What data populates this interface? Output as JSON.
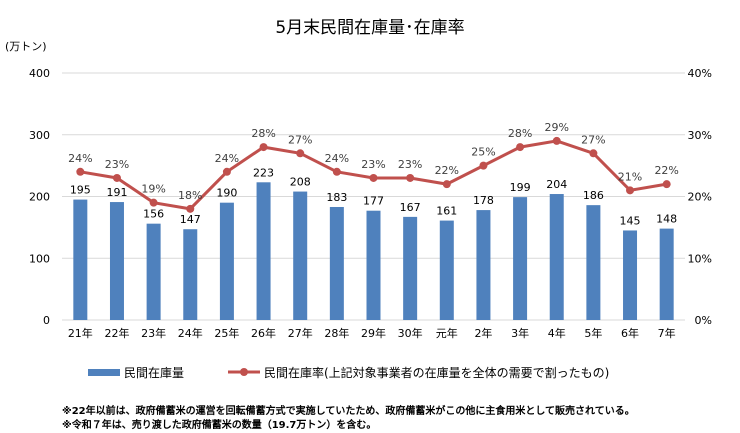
{
  "chart_data": {
    "type": "bar+line",
    "title": "5月末民間在庫量･在庫率",
    "ylabel": "(万トン)",
    "ylim": [
      0,
      400
    ],
    "y2lim": [
      0,
      40
    ],
    "yticks": [
      "0",
      "100",
      "200",
      "300",
      "400"
    ],
    "y2ticks": [
      "0%",
      "10%",
      "20%",
      "30%",
      "40%"
    ],
    "categories": [
      "21年",
      "22年",
      "23年",
      "24年",
      "25年",
      "26年",
      "27年",
      "28年",
      "29年",
      "30年",
      "元年",
      "2年",
      "3年",
      "4年",
      "5年",
      "6年",
      "7年"
    ],
    "series": [
      {
        "name": "民間在庫量",
        "type": "bar",
        "axis": "left",
        "color": "#4f81bd",
        "values": [
          195,
          191,
          156,
          147,
          190,
          223,
          208,
          183,
          177,
          167,
          161,
          178,
          199,
          204,
          186,
          145,
          148
        ]
      },
      {
        "name": "民間在庫率(上記対象事業者の在庫量を全体の需要で割ったもの)",
        "type": "line",
        "axis": "right",
        "color": "#c0504d",
        "values": [
          24,
          23,
          19,
          18,
          24,
          28,
          27,
          24,
          23,
          23,
          22,
          25,
          28,
          29,
          27,
          21,
          22
        ]
      }
    ],
    "grid": true,
    "legend_position": "bottom"
  },
  "notes": [
    "※22年以前は、政府備蓄米の運営を回転備蓄方式で実施していたため、政府備蓄米がこの他に主食用米として販売されている。",
    "※令和７年は、売り渡した政府備蓄米の数量（19.7万トン）を含む。"
  ]
}
